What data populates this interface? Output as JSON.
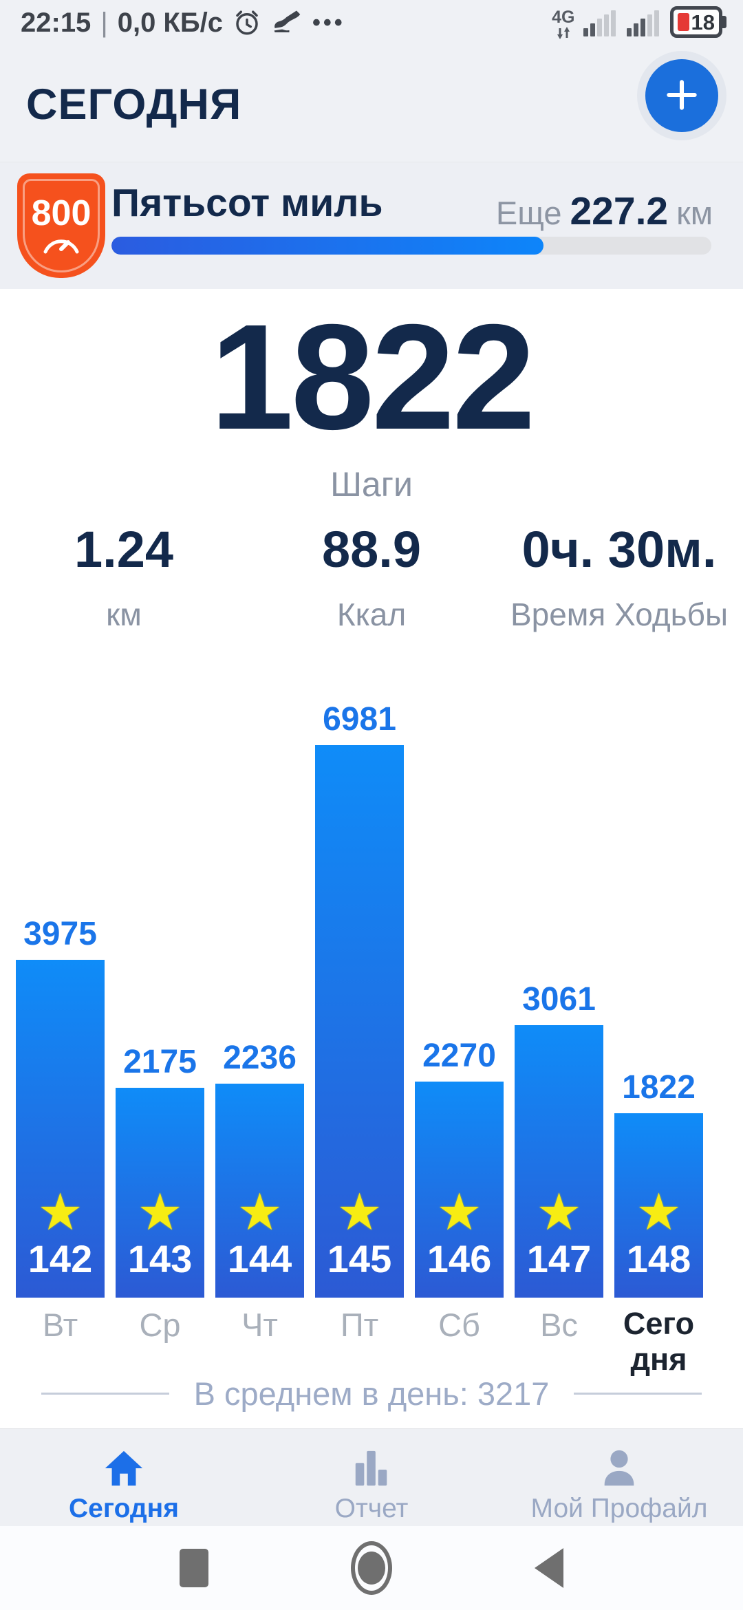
{
  "status_bar": {
    "left_text": "22:15",
    "separator": "|",
    "net_speed": "0,0 КБ/с",
    "menu_dots": "•••",
    "network_type": "4G",
    "battery_percent": "18",
    "icons": [
      "alarm-clock-icon",
      "shoe-step-icon",
      "signal-bars-icon",
      "signal-bars-icon",
      "battery-icon"
    ]
  },
  "header": {
    "title": "СЕГОДНЯ",
    "add_button": "plus-icon"
  },
  "challenge": {
    "badge_value": "800",
    "badge_icon": "gauge-icon",
    "title": "Пятьсот миль",
    "remaining_prefix": "Еще",
    "remaining_value": "227.2",
    "remaining_unit": "км",
    "progress_percent": 72
  },
  "today": {
    "steps_value": "1822",
    "steps_label": "Шаги",
    "stats": [
      {
        "value": "1.24",
        "label": "км"
      },
      {
        "value": "88.9",
        "label": "Ккал"
      },
      {
        "value": "0ч. 30м.",
        "label": "Время Ходьбы"
      }
    ]
  },
  "chart_data": {
    "type": "bar",
    "categories": [
      "Вт",
      "Ср",
      "Чт",
      "Пт",
      "Сб",
      "Вс",
      "Сегодня"
    ],
    "values": [
      3975,
      2175,
      2236,
      6981,
      2270,
      3061,
      1822
    ],
    "day_badges": [
      "142",
      "143",
      "144",
      "145",
      "146",
      "147",
      "148"
    ],
    "badge_icon": "star-icon",
    "today_index": 6,
    "title": "",
    "xlabel": "",
    "ylabel": "",
    "ylim": [
      0,
      6981
    ],
    "grid": false,
    "legend": "none",
    "average_text": "В среднем в день: 3217",
    "bar_color_top": "#0f8cf8",
    "bar_color_bottom": "#2c5ad4",
    "value_label_color": "#1a75e9",
    "star_color": "#f8ec1a"
  },
  "bottom_nav": {
    "items": [
      {
        "label": "Сегодня",
        "icon": "home-icon",
        "active": true
      },
      {
        "label": "Отчет",
        "icon": "bar-chart-icon",
        "active": false
      },
      {
        "label": "Мой Профайл",
        "icon": "person-icon",
        "active": false
      }
    ]
  },
  "colors": {
    "accent_blue": "#1c6fe8",
    "navy_text": "#13294b",
    "gray_label": "#8a93a3",
    "badge_orange": "#f5511d",
    "top_bg": "#eff1f5",
    "nav_inactive": "#9aa8c4"
  }
}
